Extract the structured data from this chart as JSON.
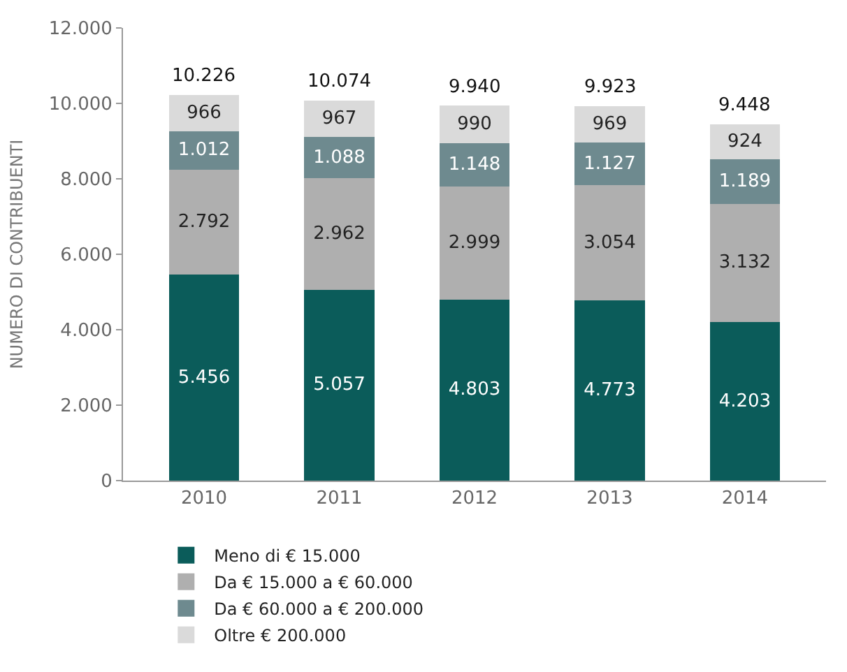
{
  "chart_data": {
    "type": "bar",
    "stacked": true,
    "ylabel": "NUMERO DI CONTRIBUENTI",
    "categories": [
      "2010",
      "2011",
      "2012",
      "2013",
      "2014"
    ],
    "series": [
      {
        "name": "Meno di € 15.000",
        "color": "#0b5c5a",
        "values": [
          5456,
          5057,
          4803,
          4773,
          4203
        ],
        "value_labels": [
          "5.456",
          "5.057",
          "4.803",
          "4.773",
          "4.203"
        ]
      },
      {
        "name": "Da € 15.000 a € 60.000",
        "color": "#afafaf",
        "values": [
          2792,
          2962,
          2999,
          3054,
          3132
        ],
        "value_labels": [
          "2.792",
          "2.962",
          "2.999",
          "3.054",
          "3.132"
        ]
      },
      {
        "name": "Da € 60.000 a € 200.000",
        "color": "#6e8a8f",
        "values": [
          1012,
          1088,
          1148,
          1127,
          1189
        ],
        "value_labels": [
          "1.012",
          "1.088",
          "1.148",
          "1.127",
          "1.189"
        ]
      },
      {
        "name": "Oltre € 200.000",
        "color": "#dadada",
        "values": [
          966,
          967,
          990,
          969,
          924
        ],
        "value_labels": [
          "966",
          "967",
          "990",
          "969",
          "924"
        ]
      }
    ],
    "totals": [
      "10.226",
      "10.074",
      "9.940",
      "9.923",
      "9.448"
    ],
    "ylim": [
      0,
      12000
    ],
    "yticks": [
      {
        "value": 0,
        "label": "0"
      },
      {
        "value": 2000,
        "label": "2.000"
      },
      {
        "value": 4000,
        "label": "4.000"
      },
      {
        "value": 6000,
        "label": "6.000"
      },
      {
        "value": 8000,
        "label": "8.000"
      },
      {
        "value": 10000,
        "label": "10.000"
      },
      {
        "value": 12000,
        "label": "12.000"
      }
    ],
    "legend": "bottom"
  }
}
